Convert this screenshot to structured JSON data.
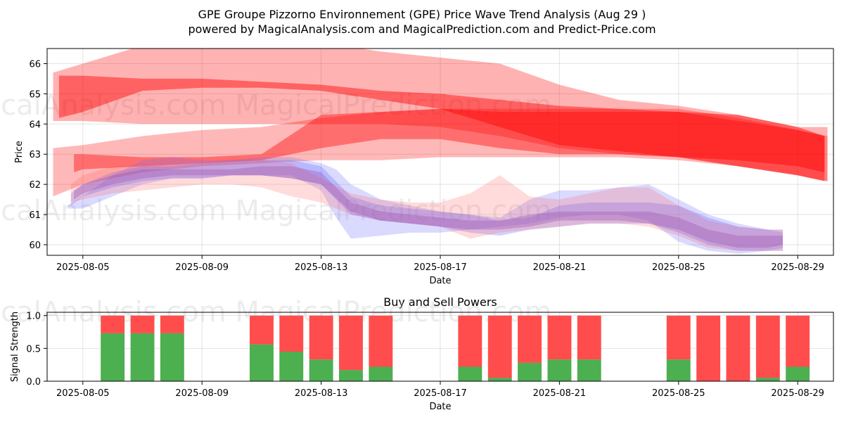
{
  "chart_data": [
    {
      "type": "area",
      "title_line1": "GPE Groupe Pizzorno Environnement (GPE) Price Wave Trend Analysis (Aug 29 )",
      "title_line2": "powered by MagicalAnalysis.com and MagicalPrediction.com and Predict-Price.com",
      "xlabel": "Date",
      "ylabel": "Price",
      "ylim": [
        59.65,
        66.5
      ],
      "x_range_days": [
        -1.2,
        25.2
      ],
      "x_ticks": [
        "2025-08-05",
        "2025-08-09",
        "2025-08-13",
        "2025-08-17",
        "2025-08-21",
        "2025-08-25",
        "2025-08-29"
      ],
      "x_tick_days": [
        0,
        4,
        8,
        12,
        16,
        20,
        24
      ],
      "y_ticks": [
        60,
        61,
        62,
        63,
        64,
        65,
        66
      ],
      "watermark": "MagicalAnalysis.com    MagicalPrediction.com",
      "series": [
        {
          "name": "upper-wave-outer",
          "color": "#ff0000",
          "opacity": 0.3,
          "days": [
            -1,
            0,
            2,
            4,
            6,
            8,
            10,
            12,
            14,
            16,
            18,
            20,
            22,
            24,
            25
          ],
          "upper": [
            65.7,
            66.0,
            66.6,
            66.8,
            66.8,
            66.7,
            66.4,
            66.2,
            66.0,
            65.3,
            64.8,
            64.6,
            64.3,
            63.9,
            63.9
          ],
          "lower": [
            64.1,
            64.1,
            64.0,
            64.0,
            64.0,
            64.0,
            64.0,
            63.9,
            63.6,
            63.2,
            63.0,
            62.9,
            62.6,
            62.3,
            62.1
          ]
        },
        {
          "name": "upper-wave-inner",
          "color": "#ff0000",
          "opacity": 0.45,
          "days": [
            -0.8,
            0,
            2,
            4,
            6,
            8,
            10,
            12,
            14,
            16,
            18,
            20,
            22,
            24,
            24.9
          ],
          "upper": [
            65.6,
            65.6,
            65.5,
            65.5,
            65.4,
            65.3,
            65.1,
            65.0,
            64.8,
            64.6,
            64.5,
            64.4,
            64.3,
            63.9,
            63.6
          ],
          "lower": [
            64.2,
            64.4,
            65.1,
            65.2,
            65.2,
            65.1,
            64.8,
            64.5,
            63.9,
            63.3,
            63.1,
            62.9,
            62.8,
            62.6,
            62.4
          ]
        },
        {
          "name": "lower-wave-outer",
          "color": "#ff0000",
          "opacity": 0.28,
          "days": [
            -1,
            0,
            2,
            4,
            6,
            8,
            10,
            12,
            14,
            16,
            18,
            20,
            22,
            24,
            25
          ],
          "upper": [
            63.2,
            63.3,
            63.6,
            63.8,
            63.9,
            64.2,
            64.4,
            64.5,
            64.5,
            64.5,
            64.5,
            64.5,
            64.2,
            63.8,
            63.6
          ],
          "lower": [
            61.6,
            62.0,
            62.4,
            62.6,
            62.7,
            62.8,
            62.8,
            62.9,
            62.9,
            62.9,
            62.9,
            62.8,
            62.6,
            62.3,
            62.1
          ]
        },
        {
          "name": "lower-wave-inner",
          "color": "#ff0000",
          "opacity": 0.4,
          "days": [
            -0.3,
            0,
            2,
            4,
            6,
            8,
            10,
            12,
            14,
            16,
            18,
            20,
            22,
            24,
            24.9
          ],
          "upper": [
            63.0,
            63.0,
            62.9,
            62.9,
            63.0,
            64.3,
            64.4,
            64.5,
            64.4,
            64.4,
            64.4,
            64.4,
            64.1,
            63.8,
            63.6
          ],
          "lower": [
            62.4,
            62.5,
            62.6,
            62.7,
            62.8,
            63.2,
            63.5,
            63.5,
            63.2,
            63.0,
            63.0,
            62.9,
            62.6,
            62.3,
            62.1
          ]
        },
        {
          "name": "price-band-blue-outer",
          "color": "#6b6bff",
          "opacity": 0.25,
          "days": [
            -0.5,
            0,
            1,
            2,
            3,
            4,
            5,
            6,
            7,
            8,
            8.5,
            9,
            10,
            11,
            12,
            13,
            14,
            15,
            16,
            17,
            18,
            19,
            20,
            21,
            22,
            23,
            23.5
          ],
          "upper": [
            61.3,
            61.6,
            62.3,
            62.8,
            62.9,
            62.8,
            62.8,
            62.9,
            62.9,
            62.7,
            62.5,
            62.0,
            61.5,
            61.3,
            61.1,
            61.0,
            60.9,
            61.5,
            61.8,
            61.8,
            61.9,
            62.0,
            61.5,
            61.0,
            60.7,
            60.5,
            60.4
          ],
          "lower": [
            61.2,
            61.2,
            61.6,
            62.0,
            62.2,
            62.2,
            62.3,
            62.3,
            62.3,
            61.8,
            60.9,
            60.2,
            60.3,
            60.4,
            60.4,
            60.5,
            60.6,
            60.7,
            60.9,
            61.0,
            61.0,
            60.8,
            60.1,
            59.8,
            59.7,
            59.8,
            59.9
          ]
        },
        {
          "name": "price-band-blue-inner",
          "color": "#6b6bff",
          "opacity": 0.3,
          "days": [
            -0.4,
            0,
            1,
            2,
            3,
            4,
            5,
            6,
            7,
            8,
            9,
            10,
            11,
            12,
            13,
            14,
            15,
            16,
            17,
            18,
            19,
            20,
            21,
            22,
            23,
            23.5
          ],
          "upper": [
            61.7,
            62.0,
            62.4,
            62.6,
            62.6,
            62.7,
            62.8,
            62.8,
            62.8,
            62.6,
            61.6,
            61.3,
            61.2,
            61.1,
            61.0,
            60.8,
            60.9,
            61.3,
            61.4,
            61.4,
            61.4,
            61.3,
            60.9,
            60.6,
            60.5,
            60.5
          ],
          "lower": [
            61.3,
            61.6,
            61.9,
            62.1,
            62.2,
            62.2,
            62.3,
            62.3,
            62.2,
            62.0,
            61.0,
            60.8,
            60.7,
            60.6,
            60.4,
            60.3,
            60.5,
            60.6,
            60.7,
            60.7,
            60.7,
            60.4,
            60.0,
            59.8,
            59.8,
            59.8
          ]
        },
        {
          "name": "price-band-red",
          "color": "#ff5a5a",
          "opacity": 0.22,
          "days": [
            -0.4,
            0,
            1,
            2,
            3,
            4,
            5,
            6,
            7,
            8,
            9,
            10,
            11,
            12,
            13,
            14,
            15,
            16,
            17,
            18,
            19,
            20,
            21,
            22,
            23,
            23.5
          ],
          "upper": [
            62.0,
            62.3,
            62.6,
            62.7,
            62.7,
            62.7,
            62.9,
            62.8,
            62.7,
            62.2,
            61.7,
            61.5,
            61.4,
            61.4,
            61.7,
            62.3,
            61.6,
            61.5,
            61.7,
            61.9,
            61.9,
            61.3,
            60.8,
            60.6,
            60.5,
            60.5
          ],
          "lower": [
            61.4,
            61.5,
            61.7,
            61.8,
            61.9,
            62.0,
            62.0,
            61.9,
            61.6,
            61.4,
            61.0,
            60.8,
            60.7,
            60.6,
            60.2,
            60.4,
            60.5,
            60.6,
            60.7,
            60.7,
            60.6,
            60.3,
            59.9,
            59.8,
            59.8,
            59.8
          ]
        },
        {
          "name": "price-core-purple",
          "color": "#9a4fb0",
          "opacity": 0.35,
          "days": [
            -0.3,
            0,
            1,
            2,
            3,
            4,
            5,
            6,
            7,
            8,
            9,
            10,
            11,
            12,
            13,
            14,
            15,
            16,
            17,
            18,
            19,
            20,
            21,
            22,
            23,
            23.5
          ],
          "upper": [
            61.8,
            62.0,
            62.3,
            62.5,
            62.5,
            62.5,
            62.5,
            62.6,
            62.6,
            62.4,
            61.4,
            61.1,
            61.0,
            60.9,
            60.8,
            60.8,
            61.0,
            61.1,
            61.1,
            61.1,
            61.1,
            60.9,
            60.5,
            60.3,
            60.3,
            60.3
          ],
          "lower": [
            61.5,
            61.7,
            62.0,
            62.2,
            62.3,
            62.3,
            62.3,
            62.3,
            62.2,
            62.0,
            61.1,
            60.8,
            60.7,
            60.6,
            60.5,
            60.5,
            60.6,
            60.8,
            60.8,
            60.8,
            60.7,
            60.5,
            60.1,
            59.9,
            59.9,
            60.0
          ]
        }
      ]
    },
    {
      "type": "bar",
      "title": "Buy and Sell Powers",
      "xlabel": "Date",
      "ylabel": "Signal Strength",
      "ylim": [
        0,
        1.05
      ],
      "y_ticks": [
        "0.0",
        "0.5",
        "1.0"
      ],
      "y_tick_values": [
        0,
        0.5,
        1.0
      ],
      "x_ticks": [
        "2025-08-05",
        "2025-08-09",
        "2025-08-13",
        "2025-08-17",
        "2025-08-21",
        "2025-08-25",
        "2025-08-29"
      ],
      "x_tick_days": [
        0,
        4,
        8,
        12,
        16,
        20,
        24
      ],
      "x_range_days": [
        -1.2,
        25.2
      ],
      "buy_color": "#4caf50",
      "sell_color": "#ff4d4d",
      "bars": [
        {
          "day": 1,
          "buy": 0.73
        },
        {
          "day": 2,
          "buy": 0.73
        },
        {
          "day": 3,
          "buy": 0.73
        },
        {
          "day": 6,
          "buy": 0.56
        },
        {
          "day": 7,
          "buy": 0.45
        },
        {
          "day": 8,
          "buy": 0.33
        },
        {
          "day": 9,
          "buy": 0.17
        },
        {
          "day": 10,
          "buy": 0.22
        },
        {
          "day": 13,
          "buy": 0.22
        },
        {
          "day": 14,
          "buy": 0.05
        },
        {
          "day": 15,
          "buy": 0.28
        },
        {
          "day": 16,
          "buy": 0.33
        },
        {
          "day": 17,
          "buy": 0.33
        },
        {
          "day": 20,
          "buy": 0.33
        },
        {
          "day": 21,
          "buy": 0.0
        },
        {
          "day": 22,
          "buy": 0.0
        },
        {
          "day": 23,
          "buy": 0.05
        },
        {
          "day": 24,
          "buy": 0.22
        }
      ]
    }
  ]
}
